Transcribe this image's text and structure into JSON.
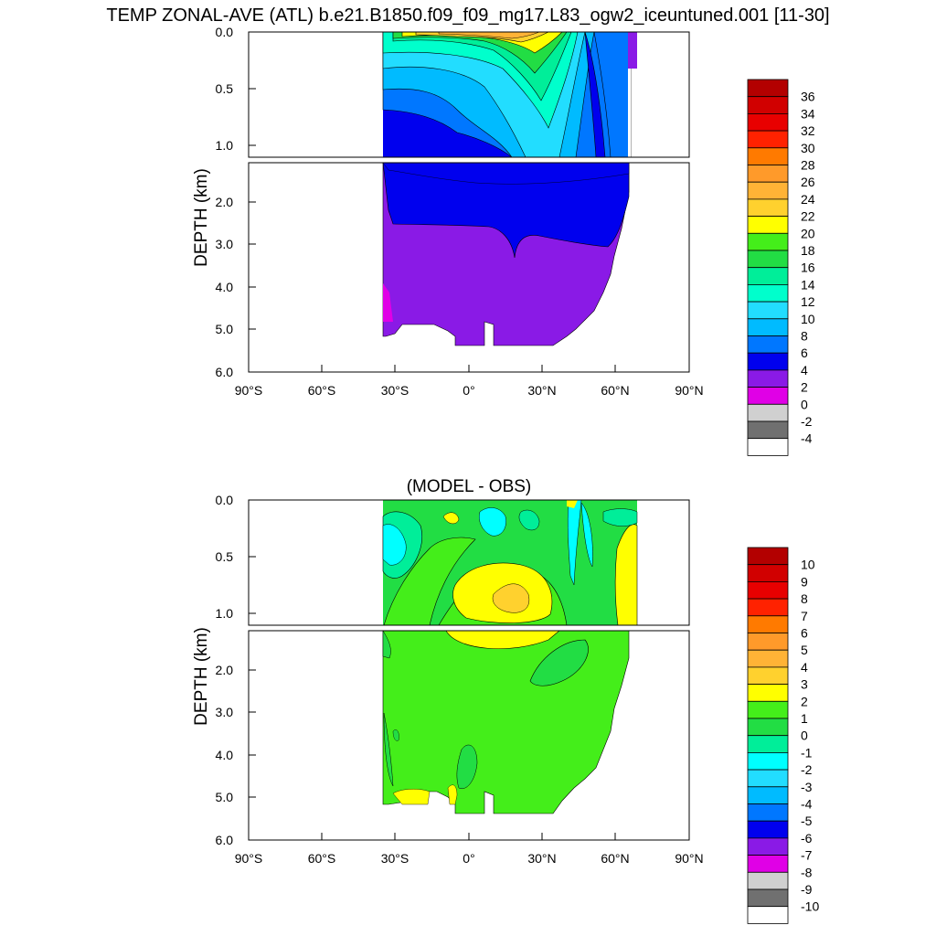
{
  "title": "TEMP ZONAL-AVE (ATL) b.e21.B1850.f09_f09_mg17.L83_ogw2_iceuntuned.001 [11-30]",
  "chart_data": [
    {
      "type": "heatmap",
      "name": "model",
      "subtitle": "",
      "ylabel": "DEPTH (km)",
      "xlabel": "",
      "x_ticks": [
        "90°S",
        "60°S",
        "30°S",
        "0°",
        "30°N",
        "60°N",
        "90°N"
      ],
      "y_ticks_upper": [
        "0.0",
        "0.5",
        "1.0"
      ],
      "y_ticks_lower": [
        "2.0",
        "3.0",
        "4.0",
        "5.0",
        "6.0"
      ],
      "xlim": [
        -90,
        90
      ],
      "ylim_upper_km": [
        0,
        1.1
      ],
      "ylim_lower_km": [
        1.2,
        6.0
      ],
      "colorbar_labels": [
        "36",
        "34",
        "32",
        "30",
        "28",
        "26",
        "24",
        "22",
        "20",
        "18",
        "16",
        "14",
        "12",
        "10",
        "8",
        "6",
        "4",
        "2",
        "0",
        "-2",
        "-4"
      ],
      "colorbar_colors": [
        "#b30000",
        "#d10000",
        "#e80000",
        "#ff2200",
        "#ff7a00",
        "#ff9a2a",
        "#ffb336",
        "#ffd12e",
        "#ffff00",
        "#44ee1a",
        "#22dd44",
        "#00ee99",
        "#00ffcc",
        "#22ddff",
        "#00bbff",
        "#0077ff",
        "#0000ee",
        "#8a1ae6",
        "#e000e6",
        "#d0d0d0",
        "#707070",
        "#ffffff"
      ]
    },
    {
      "type": "heatmap",
      "name": "difference",
      "subtitle": "(MODEL - OBS)",
      "ylabel": "DEPTH (km)",
      "xlabel": "",
      "x_ticks": [
        "90°S",
        "60°S",
        "30°S",
        "0°",
        "30°N",
        "60°N",
        "90°N"
      ],
      "y_ticks_upper": [
        "0.0",
        "0.5",
        "1.0"
      ],
      "y_ticks_lower": [
        "2.0",
        "3.0",
        "4.0",
        "5.0",
        "6.0"
      ],
      "xlim": [
        -90,
        90
      ],
      "ylim_upper_km": [
        0,
        1.1
      ],
      "ylim_lower_km": [
        1.2,
        6.0
      ],
      "colorbar_labels": [
        "10",
        "9",
        "8",
        "7",
        "6",
        "5",
        "4",
        "3",
        "2",
        "1",
        "0",
        "-1",
        "-2",
        "-3",
        "-4",
        "-5",
        "-6",
        "-7",
        "-8",
        "-9",
        "-10"
      ],
      "colorbar_colors": [
        "#b30000",
        "#d10000",
        "#e80000",
        "#ff2200",
        "#ff7a00",
        "#ff9a2a",
        "#ffb336",
        "#ffd12e",
        "#ffff00",
        "#44ee1a",
        "#22dd44",
        "#00ee99",
        "#00ffff",
        "#22ddff",
        "#00bbff",
        "#0077ff",
        "#0000ee",
        "#8a1ae6",
        "#e000e6",
        "#d0d0d0",
        "#707070",
        "#ffffff"
      ]
    }
  ]
}
